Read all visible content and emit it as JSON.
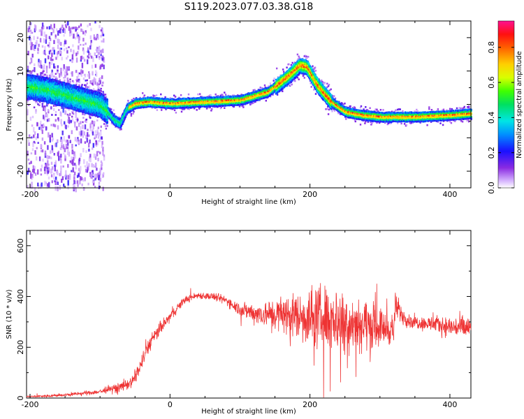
{
  "title": "S119.2023.077.03.38.G18",
  "chart_data": [
    {
      "type": "heatmap",
      "name": "spectrogram",
      "xlabel": "Height of straight line (km)",
      "ylabel": "Frequency (Hz)",
      "xlim": [
        -205,
        430
      ],
      "ylim": [
        -25,
        25
      ],
      "xticks": [
        "-200",
        "0",
        "200",
        "400"
      ],
      "xtick_values": [
        -200,
        0,
        200,
        400
      ],
      "yticks": [
        "20",
        "10",
        "0",
        "-10",
        "-20"
      ],
      "ytick_values": [
        20,
        10,
        0,
        -10,
        -20
      ],
      "ridge": {
        "x": [
          -200,
          -175,
          -150,
          -125,
          -100,
          -90,
          -80,
          -72,
          -62,
          -50,
          -30,
          0,
          50,
          100,
          140,
          170,
          185,
          195,
          210,
          230,
          250,
          275,
          300,
          350,
          400,
          430
        ],
        "y": [
          5.5,
          4.5,
          3,
          1.5,
          0,
          -2,
          -4.5,
          -5.5,
          -1,
          0.5,
          1,
          0.5,
          1,
          1.5,
          4,
          9,
          12,
          11.5,
          6,
          1,
          -2,
          -3,
          -3.5,
          -3.5,
          -3,
          -2.5
        ]
      },
      "colorbar": {
        "label": "Normalized spectral amplitude",
        "ticks": [
          "0.0",
          "0.2",
          "0.4",
          "0.6",
          "0.8"
        ],
        "tick_values": [
          0.0,
          0.2,
          0.4,
          0.6,
          0.8
        ],
        "range": [
          0,
          0.95
        ]
      }
    },
    {
      "type": "line",
      "name": "snr",
      "xlabel": "Height of straight line (km)",
      "ylabel": "SNR (10 * v/v)",
      "xlim": [
        -205,
        430
      ],
      "ylim": [
        0,
        660
      ],
      "xticks": [
        "-200",
        "0",
        "200",
        "400"
      ],
      "xtick_values": [
        -200,
        0,
        200,
        400
      ],
      "yticks": [
        "600",
        "400",
        "200",
        "0"
      ],
      "ytick_values": [
        600,
        400,
        200,
        0
      ],
      "color": "#ee3333",
      "envelope": {
        "x": [
          -205,
          -150,
          -100,
          -70,
          -55,
          -45,
          -30,
          -15,
          0,
          20,
          40,
          60,
          80,
          100,
          120,
          140,
          160,
          180,
          200,
          220,
          240,
          260,
          280,
          300,
          320,
          322,
          340,
          360,
          380,
          400,
          430
        ],
        "mean": [
          5,
          12,
          25,
          45,
          60,
          110,
          210,
          270,
          320,
          385,
          405,
          400,
          385,
          350,
          335,
          330,
          330,
          325,
          320,
          320,
          310,
          300,
          290,
          280,
          270,
          360,
          305,
          295,
          290,
          280,
          275
        ],
        "amplitude": [
          6,
          8,
          15,
          25,
          35,
          45,
          45,
          40,
          30,
          22,
          20,
          22,
          28,
          40,
          60,
          80,
          110,
          140,
          170,
          190,
          190,
          170,
          150,
          110,
          90,
          80,
          40,
          40,
          50,
          60,
          80
        ]
      }
    }
  ]
}
